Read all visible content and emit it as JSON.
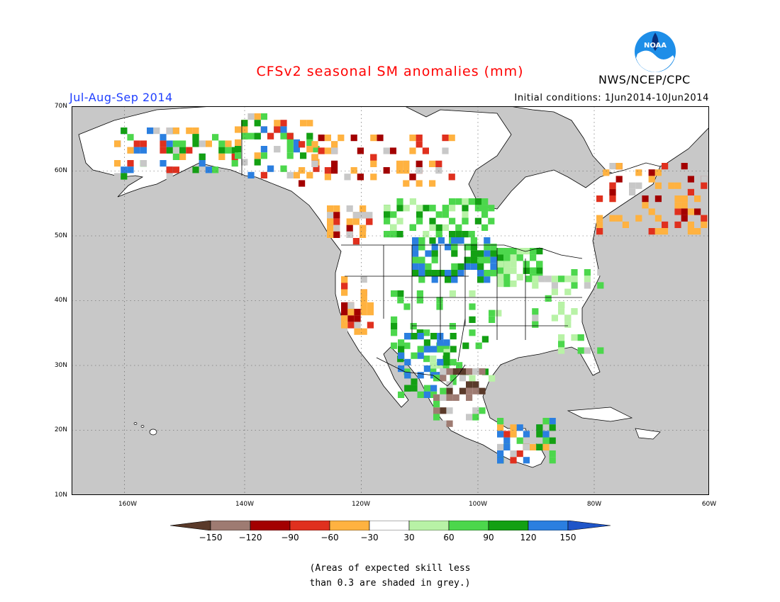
{
  "title": "CFSv2 seasonal SM anomalies (mm)",
  "period": "Jul-Aug-Sep 2014",
  "initial_conditions": "Initial conditions: 1Jun2014-10Jun2014",
  "agency": "NWS/NCEP/CPC",
  "logo_text": "NOAA",
  "axes": {
    "lat_labels": [
      "70N",
      "60N",
      "50N",
      "40N",
      "30N",
      "20N",
      "10N"
    ],
    "lon_labels": [
      "160W",
      "140W",
      "120W",
      "100W",
      "80W",
      "60W"
    ]
  },
  "colorbar": {
    "labels": [
      "-150",
      "-120",
      "-90",
      "-60",
      "-30",
      "30",
      "60",
      "90",
      "120",
      "150"
    ],
    "colors": [
      "#5a3a2a",
      "#9e7b72",
      "#a30000",
      "#e0301e",
      "#ff6a00",
      "#ffb240",
      "#ffffff",
      "#b8f2a6",
      "#4cd74c",
      "#13a013",
      "#2b7fe0",
      "#1f55c8"
    ]
  },
  "note_lines": [
    "(Areas of expected skill less",
    "than 0.3 are shaded in grey.)"
  ],
  "colors": {
    "ocean_grey": "#c8c8c8",
    "land_white": "#ffffff",
    "title_red": "#ff0000",
    "period_blue": "#1f3fff",
    "noaa_blue": "#1e8ee8"
  }
}
